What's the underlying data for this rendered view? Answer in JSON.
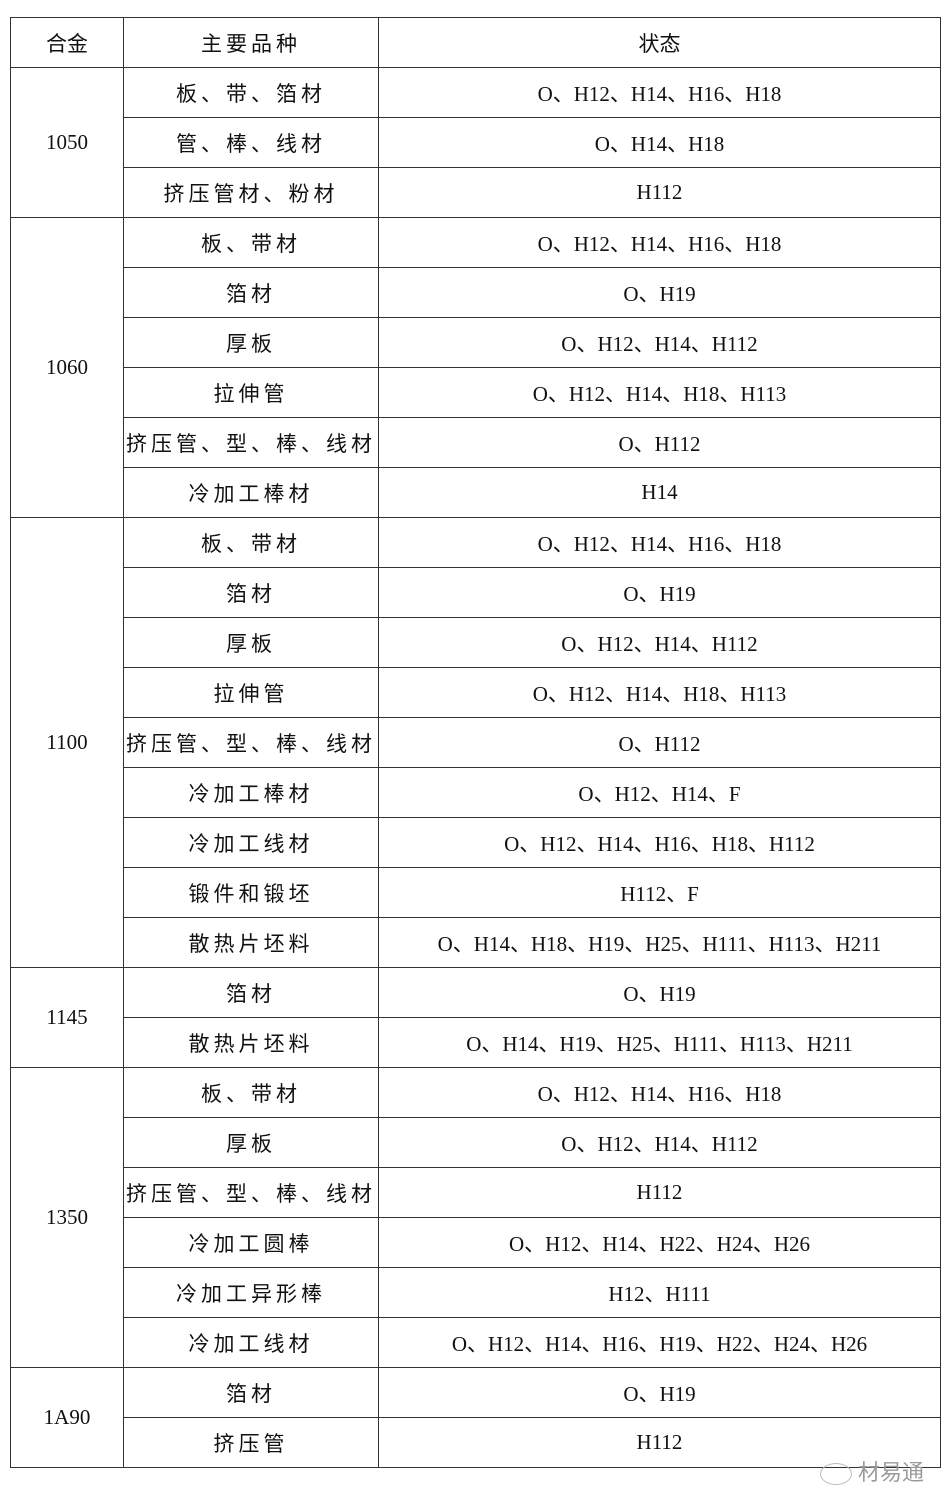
{
  "header": {
    "alloy": "合金",
    "product": "主要品种",
    "temper": "状态"
  },
  "groups": [
    {
      "alloy": "1050",
      "rows": [
        {
          "product": "板、带、箔材",
          "temper": "O、H12、H14、H16、H18"
        },
        {
          "product": "管、棒、线材",
          "temper": "O、H14、H18"
        },
        {
          "product": "挤压管材、粉材",
          "temper": "H112"
        }
      ]
    },
    {
      "alloy": "1060",
      "rows": [
        {
          "product": "板、带材",
          "temper": "O、H12、H14、H16、H18"
        },
        {
          "product": "箔材",
          "temper": "O、H19"
        },
        {
          "product": "厚板",
          "temper": "O、H12、H14、H112"
        },
        {
          "product": "拉伸管",
          "temper": "O、H12、H14、H18、H113"
        },
        {
          "product": "挤压管、型、棒、线材",
          "temper": "O、H112"
        },
        {
          "product": "冷加工棒材",
          "temper": "H14"
        }
      ]
    },
    {
      "alloy": "1100",
      "rows": [
        {
          "product": "板、带材",
          "temper": "O、H12、H14、H16、H18"
        },
        {
          "product": "箔材",
          "temper": "O、H19"
        },
        {
          "product": "厚板",
          "temper": "O、H12、H14、H112"
        },
        {
          "product": "拉伸管",
          "temper": "O、H12、H14、H18、H113"
        },
        {
          "product": "挤压管、型、棒、线材",
          "temper": "O、H112"
        },
        {
          "product": "冷加工棒材",
          "temper": "O、H12、H14、F"
        },
        {
          "product": "冷加工线材",
          "temper": "O、H12、H14、H16、H18、H112"
        },
        {
          "product": "锻件和锻坯",
          "temper": "H112、F"
        },
        {
          "product": "散热片坯料",
          "temper": "O、H14、H18、H19、H25、H111、H113、H211"
        }
      ]
    },
    {
      "alloy": "1145",
      "rows": [
        {
          "product": "箔材",
          "temper": "O、H19"
        },
        {
          "product": "散热片坯料",
          "temper": "O、H14、H19、H25、H111、H113、H211"
        }
      ]
    },
    {
      "alloy": "1350",
      "rows": [
        {
          "product": "板、带材",
          "temper": "O、H12、H14、H16、H18"
        },
        {
          "product": "厚板",
          "temper": "O、H12、H14、H112"
        },
        {
          "product": "挤压管、型、棒、线材",
          "temper": "H112"
        },
        {
          "product": "冷加工圆棒",
          "temper": "O、H12、H14、H22、H24、H26"
        },
        {
          "product": "冷加工异形棒",
          "temper": "H12、H111"
        },
        {
          "product": "冷加工线材",
          "temper": "O、H12、H14、H16、H19、H22、H24、H26"
        }
      ]
    },
    {
      "alloy": "1A90",
      "rows": [
        {
          "product": "箔材",
          "temper": "O、H19"
        },
        {
          "product": "挤压管",
          "temper": "H112"
        }
      ]
    }
  ],
  "watermark": {
    "text": "材易通",
    "icon": "wechat-icon"
  }
}
